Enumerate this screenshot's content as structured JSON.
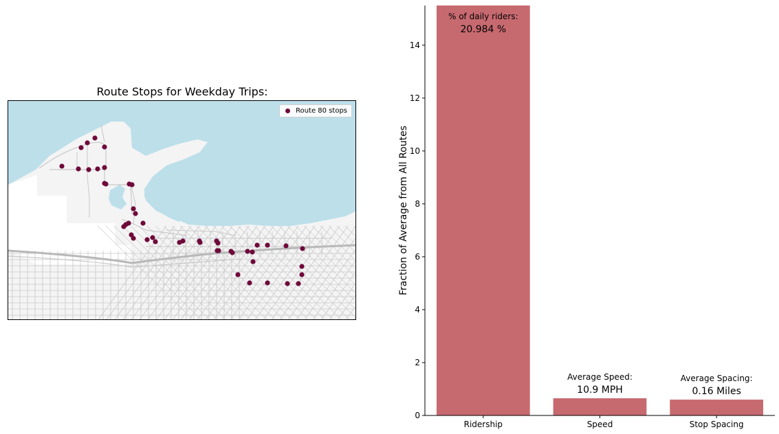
{
  "colors": {
    "water": "#bcdfea",
    "land": "#f4f4f4",
    "road": "#c8c8c8",
    "major_road": "#b8b8b8",
    "stop": "#6e0a3a",
    "bar": "#c76a70"
  },
  "map": {
    "title": "Route Stops for Weekday Trips:",
    "legend_label": "Route 80 stops",
    "stop_count_shown": 56
  },
  "chart_data": {
    "type": "bar",
    "categories": [
      "Ridership",
      "Speed",
      "Stop Spacing"
    ],
    "values": [
      15.5,
      0.65,
      0.6
    ],
    "xlabel": "",
    "ylabel": "Fraction of Average from All Routes",
    "ylim": [
      0,
      15.5
    ],
    "yticks": [
      0,
      2,
      4,
      6,
      8,
      10,
      12,
      14
    ],
    "annotations": [
      {
        "label": "% of daily riders:",
        "value": "20.984 %"
      },
      {
        "label": "Average Speed:",
        "value": "10.9 MPH"
      },
      {
        "label": "Average Spacing:",
        "value": "0.16 Miles"
      }
    ],
    "grid": false,
    "legend": "none"
  }
}
